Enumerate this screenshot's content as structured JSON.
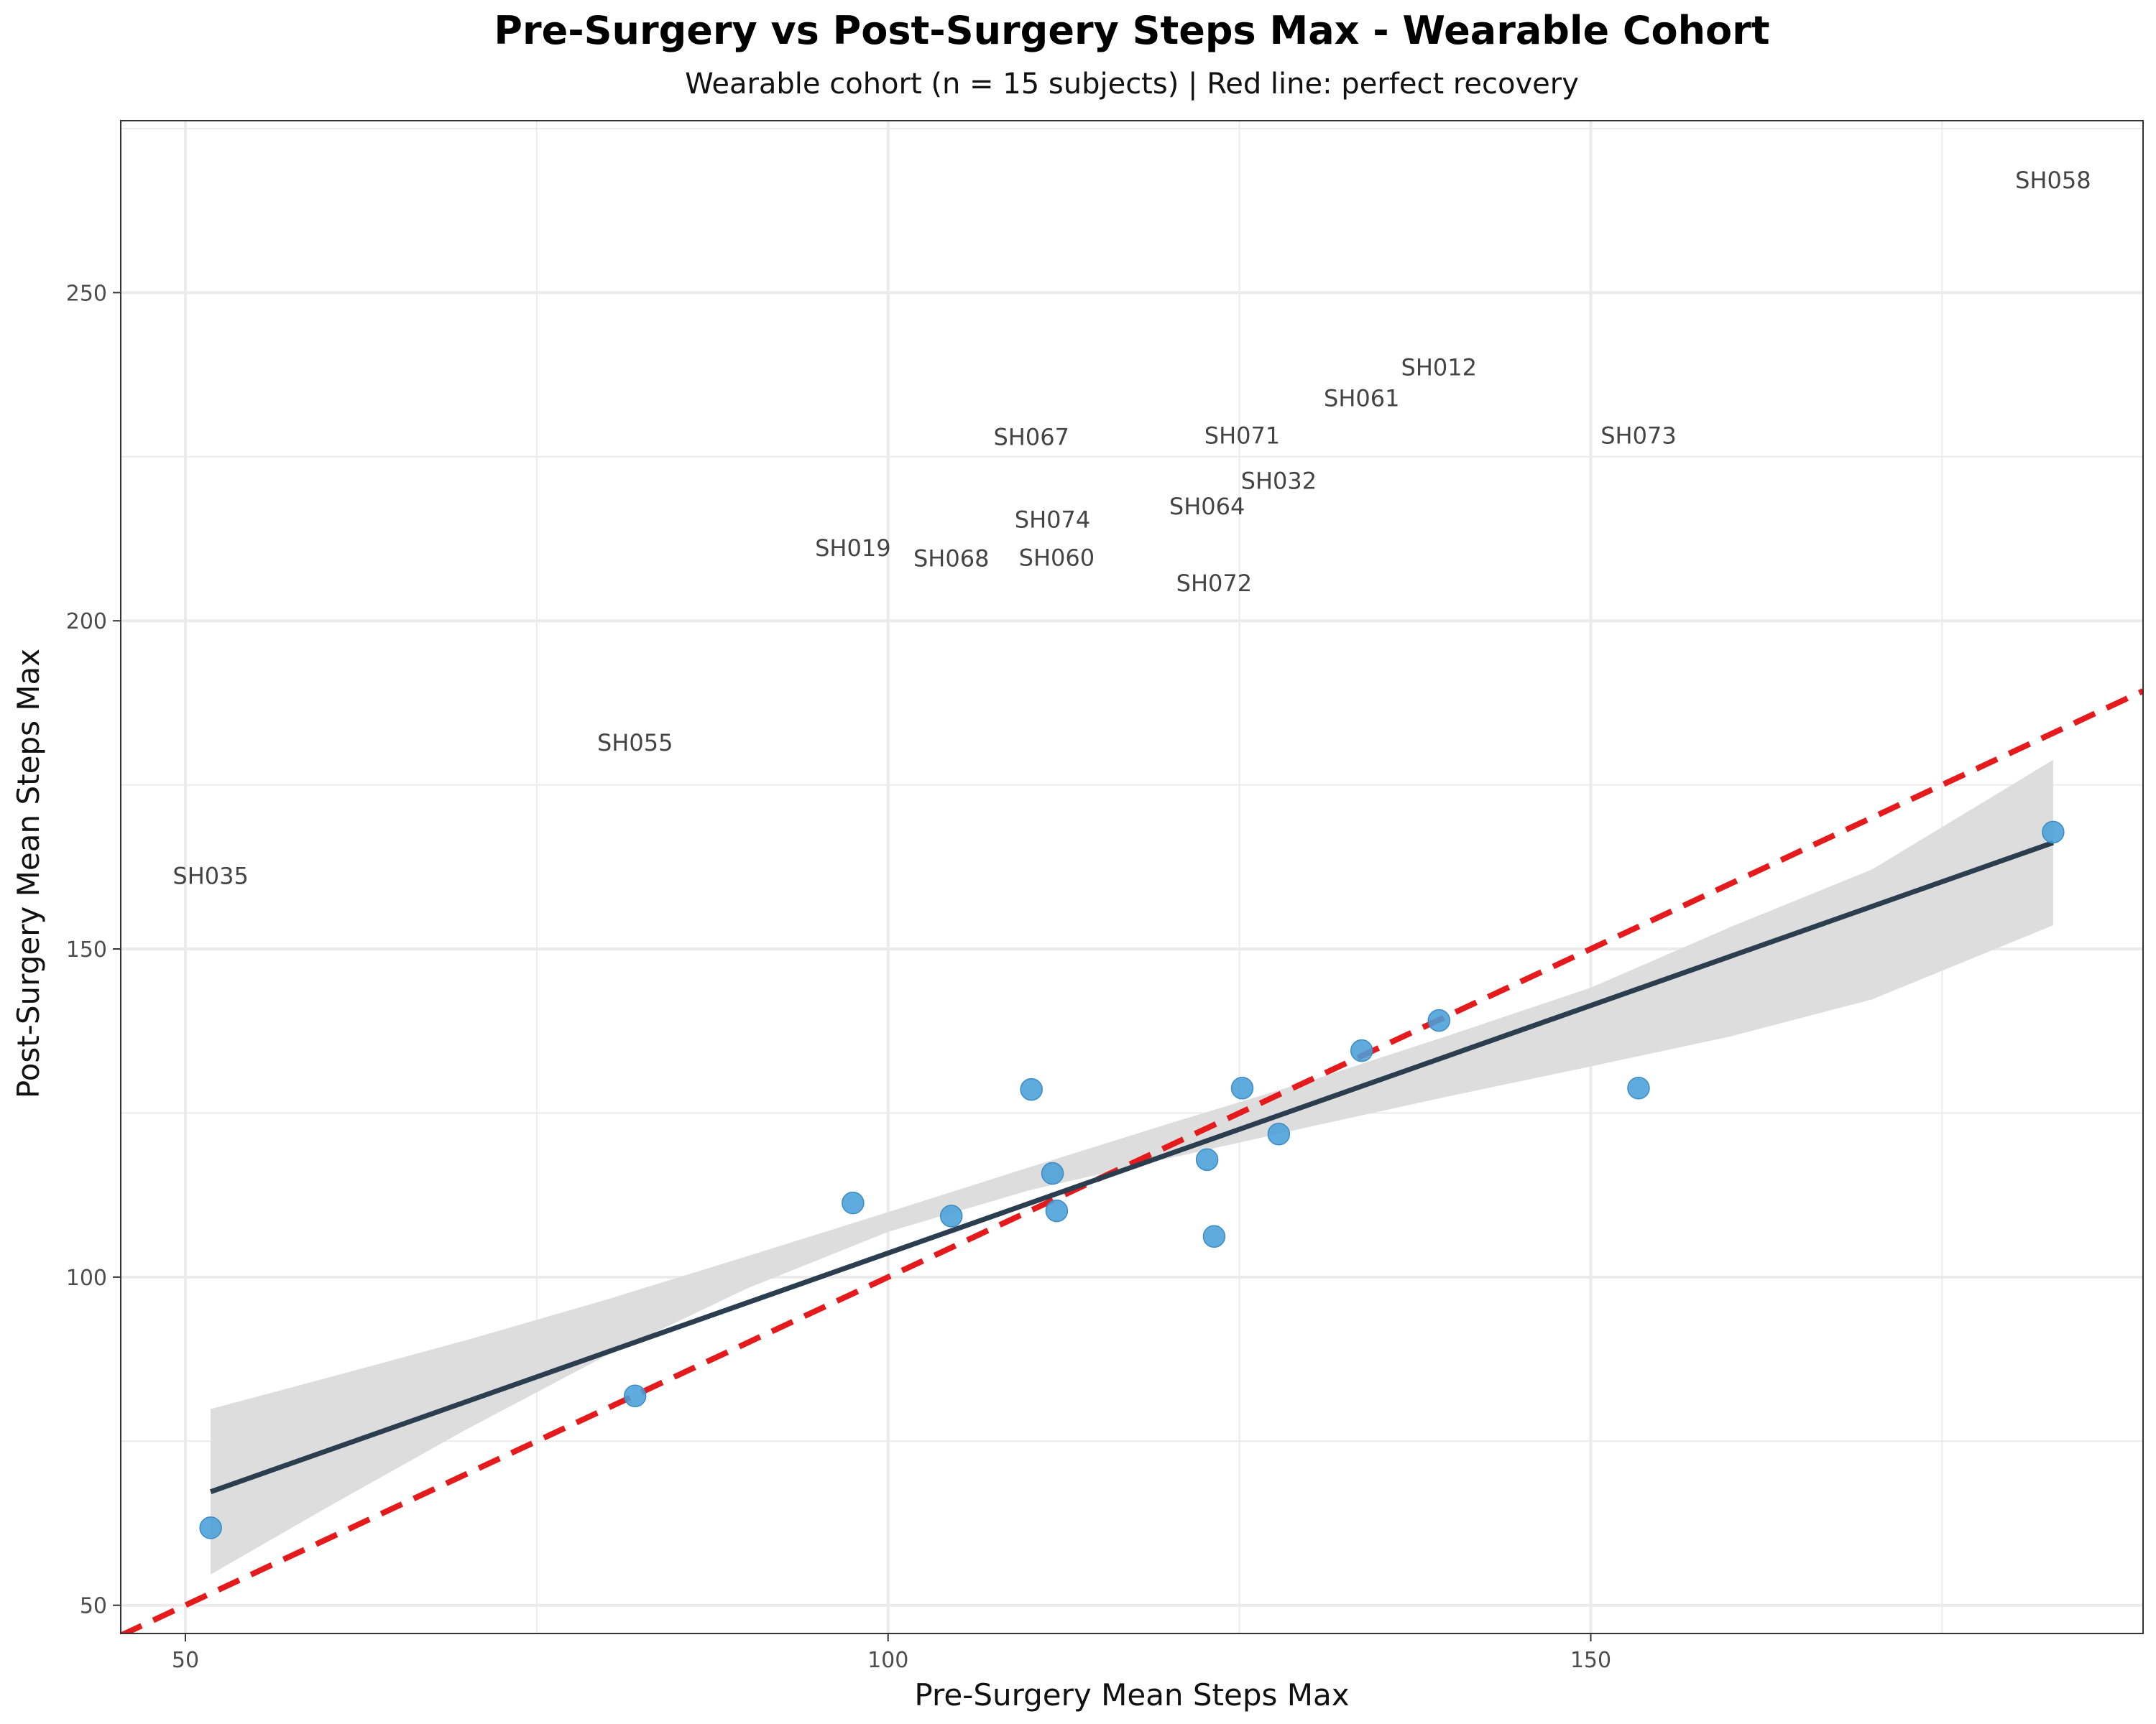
{
  "chart_data": {
    "type": "scatter",
    "title": "Pre-Surgery vs Post-Surgery Steps Max - Wearable Cohort",
    "subtitle": "Wearable cohort (n = 15 subjects) | Red line: perfect recovery",
    "xlabel": "Pre-Surgery Mean Steps Max",
    "ylabel": "Post-Surgery Mean Steps Max",
    "xlim": [
      45.4,
      189.3
    ],
    "ylim": [
      45.7,
      276.2
    ],
    "x_ticks": [
      50,
      100,
      150
    ],
    "y_ticks": [
      50,
      100,
      150,
      200,
      250
    ],
    "x_minor_ticks": [
      75,
      125,
      175
    ],
    "y_minor_ticks": [
      75,
      125,
      175,
      225,
      275
    ],
    "grid": true,
    "points": [
      {
        "x": 51.8,
        "y": 61.8
      },
      {
        "x": 82.0,
        "y": 81.9
      },
      {
        "x": 97.5,
        "y": 111.3
      },
      {
        "x": 104.5,
        "y": 109.3
      },
      {
        "x": 110.2,
        "y": 128.6
      },
      {
        "x": 111.7,
        "y": 115.8
      },
      {
        "x": 112.0,
        "y": 110.1
      },
      {
        "x": 122.7,
        "y": 117.9
      },
      {
        "x": 123.2,
        "y": 106.2
      },
      {
        "x": 125.2,
        "y": 128.8
      },
      {
        "x": 127.8,
        "y": 121.8
      },
      {
        "x": 133.7,
        "y": 134.5
      },
      {
        "x": 139.2,
        "y": 139.1
      },
      {
        "x": 153.4,
        "y": 128.8
      },
      {
        "x": 182.9,
        "y": 167.8
      }
    ],
    "labels": [
      {
        "text": "SH035",
        "x": 51.8,
        "y": 161.1
      },
      {
        "text": "SH055",
        "x": 82.0,
        "y": 181.4
      },
      {
        "text": "SH019",
        "x": 97.5,
        "y": 211.1
      },
      {
        "text": "SH068",
        "x": 104.5,
        "y": 209.5
      },
      {
        "text": "SH067",
        "x": 110.2,
        "y": 228.0
      },
      {
        "text": "SH074",
        "x": 111.7,
        "y": 215.4
      },
      {
        "text": "SH060",
        "x": 112.0,
        "y": 209.6
      },
      {
        "text": "SH064",
        "x": 122.7,
        "y": 217.4
      },
      {
        "text": "SH072",
        "x": 123.2,
        "y": 205.7
      },
      {
        "text": "SH071",
        "x": 125.2,
        "y": 228.2
      },
      {
        "text": "SH032",
        "x": 127.8,
        "y": 221.3
      },
      {
        "text": "SH061",
        "x": 133.7,
        "y": 233.9
      },
      {
        "text": "SH012",
        "x": 139.2,
        "y": 238.6
      },
      {
        "text": "SH073",
        "x": 153.4,
        "y": 228.2
      },
      {
        "text": "SH058",
        "x": 182.9,
        "y": 267.1
      }
    ],
    "regression": {
      "x": [
        51.8,
        182.9
      ],
      "y": [
        67.3,
        166.2
      ]
    },
    "confidence_band": {
      "x": [
        51.8,
        60,
        70,
        80,
        90,
        100,
        110,
        120,
        130,
        140,
        150,
        160,
        170,
        182.9
      ],
      "lower": [
        54.7,
        64.8,
        76.8,
        88.1,
        98.3,
        106.9,
        113.2,
        118.1,
        122.9,
        127.6,
        132.1,
        136.7,
        142.3,
        153.6
      ],
      "upper": [
        79.9,
        84.6,
        90.4,
        96.6,
        103.2,
        109.9,
        116.7,
        123.4,
        129.9,
        136.9,
        144.1,
        153.4,
        162.1,
        178.8
      ]
    },
    "reference_line": {
      "x": [
        45.4,
        189.3
      ],
      "y": [
        45.4,
        189.3
      ]
    },
    "colors": {
      "points": "#4a9fd8",
      "regression": "#2b3e50",
      "band": "#dddddd",
      "reference": "#e41a1c",
      "grid": "#ebebeb",
      "point_labels": "#444444"
    }
  }
}
